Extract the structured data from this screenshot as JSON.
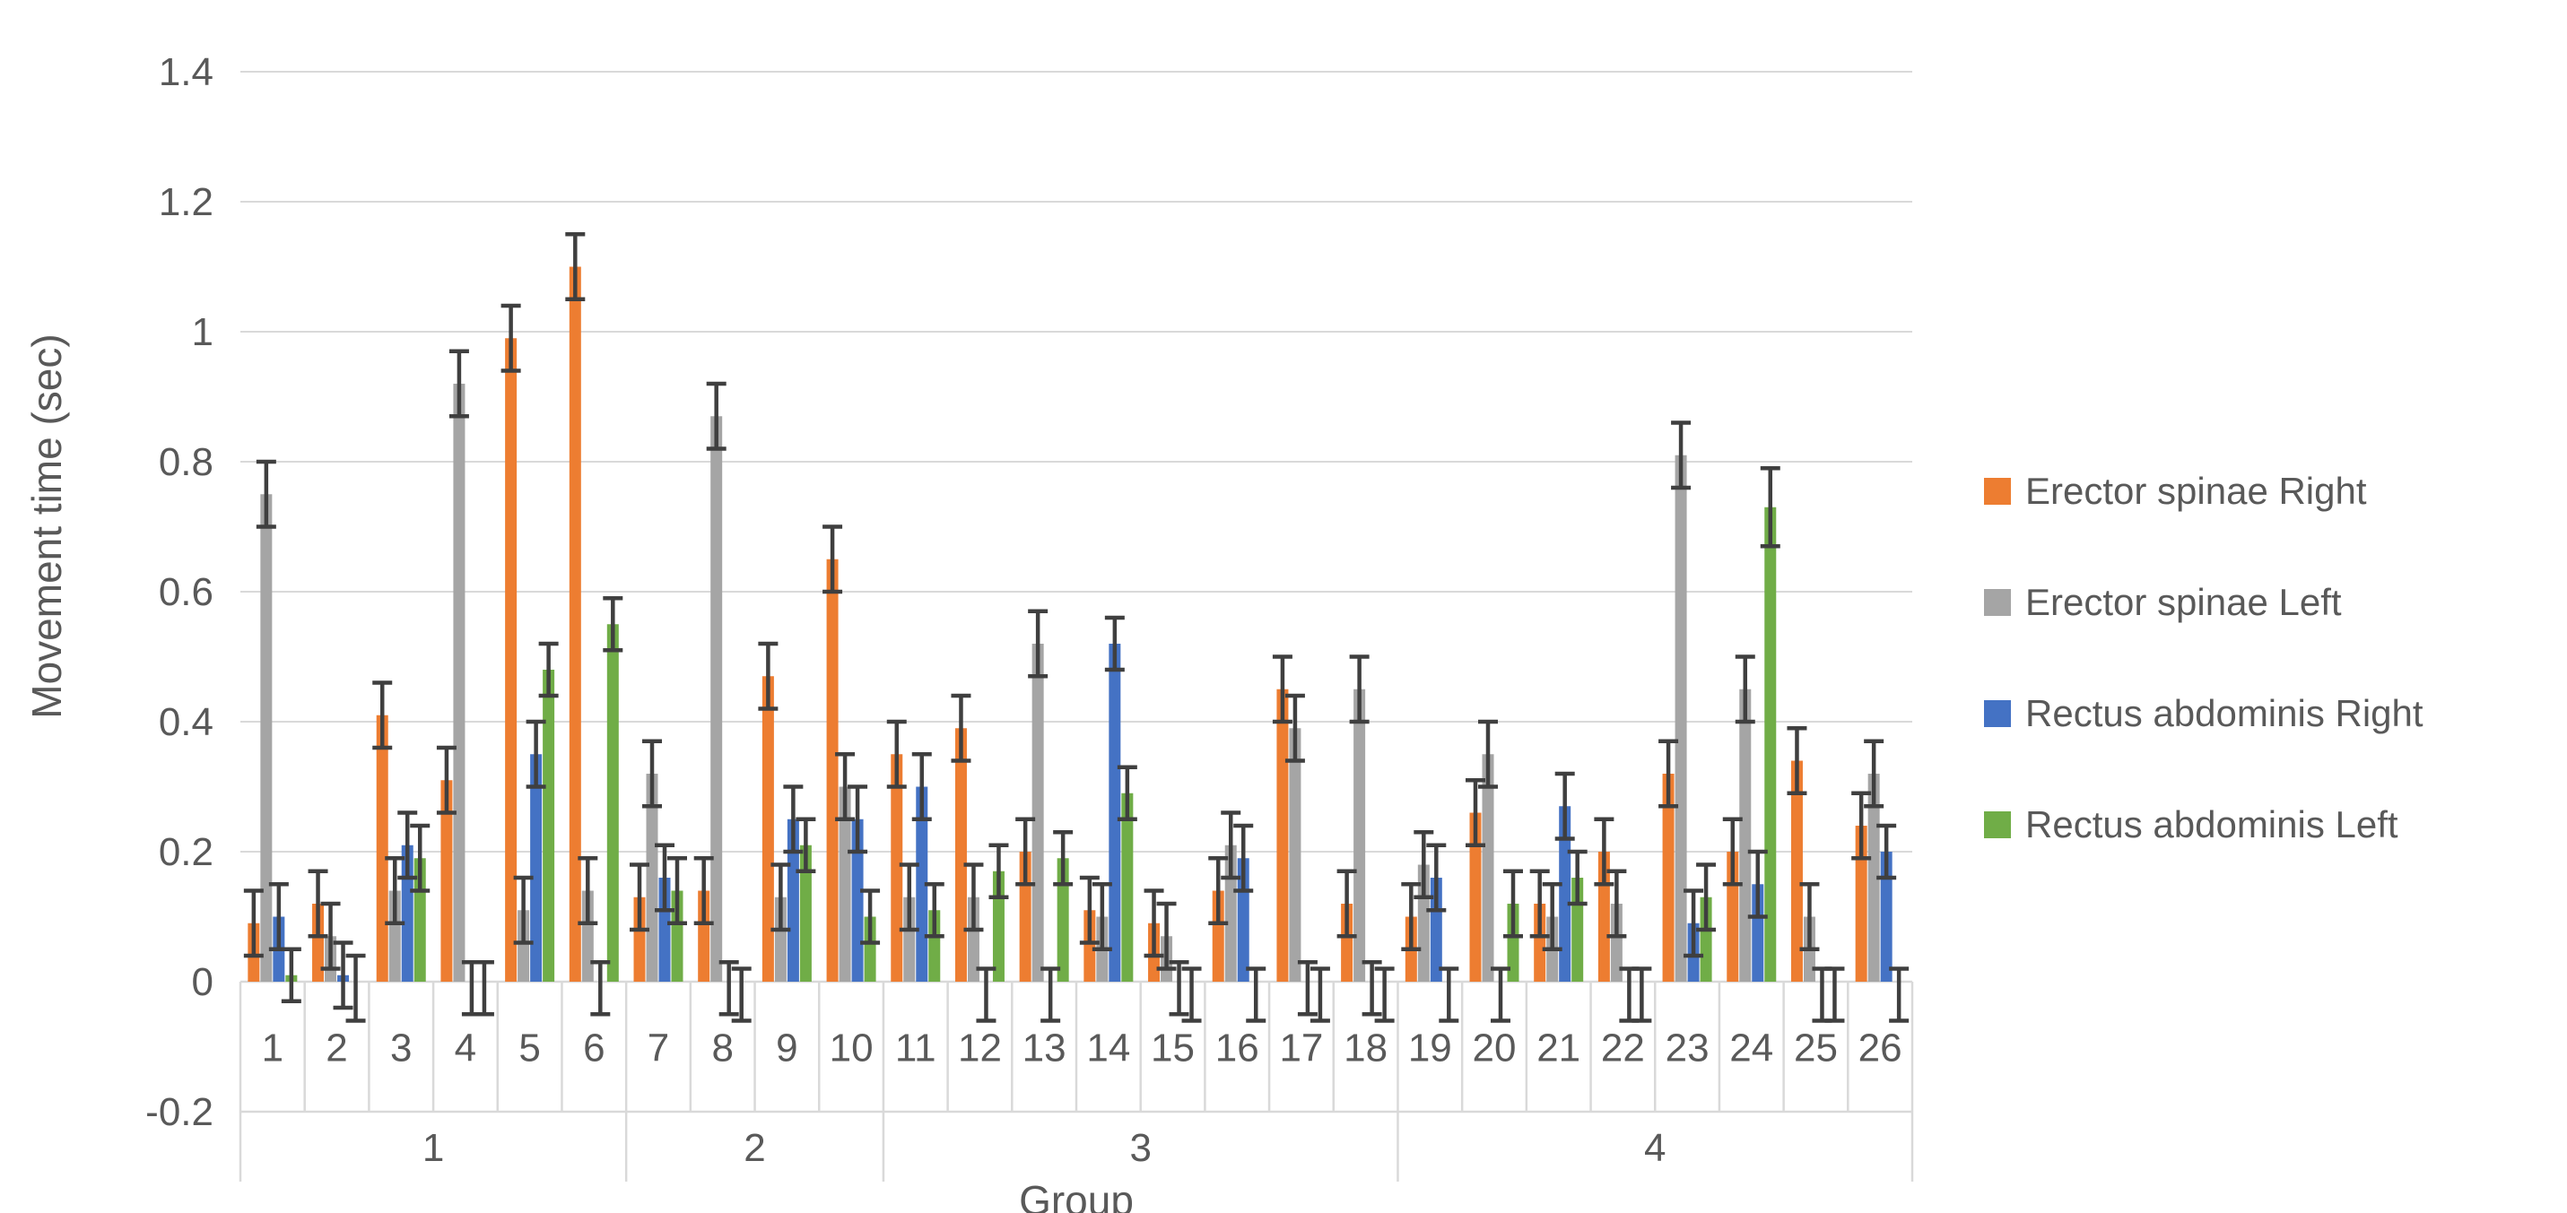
{
  "chart_data": {
    "type": "bar",
    "title": "",
    "ylabel": "Movement time (sec)",
    "xlabel": "Group",
    "ylim": [
      -0.2,
      1.4
    ],
    "grid": true,
    "legend_position": "right",
    "yticks": [
      1.4,
      1.2,
      1.0,
      0.8,
      0.6,
      0.4,
      0.2,
      0.0,
      -0.2
    ],
    "ytick_labels": [
      "1.4",
      "1.2",
      "1",
      "0.8",
      "0.6",
      "0.4",
      "0.2",
      "0",
      "-0.2"
    ],
    "categories": [
      "1",
      "2",
      "3",
      "4",
      "5",
      "6",
      "7",
      "8",
      "9",
      "10",
      "11",
      "12",
      "13",
      "14",
      "15",
      "16",
      "17",
      "18",
      "19",
      "20",
      "21",
      "22",
      "23",
      "24",
      "25",
      "26"
    ],
    "groups": [
      {
        "label": "1",
        "count": 6
      },
      {
        "label": "2",
        "count": 4
      },
      {
        "label": "3",
        "count": 8
      },
      {
        "label": "4",
        "count": 8
      }
    ],
    "error_bar_color": "#3F3F3F",
    "axis_color": "#D9D9D9",
    "text_color": "#595959",
    "series": [
      {
        "name": "Erector spinae Right",
        "color": "#ED7D31",
        "values": [
          0.09,
          0.12,
          0.41,
          0.31,
          0.99,
          1.1,
          0.13,
          0.14,
          0.47,
          0.65,
          0.35,
          0.39,
          0.2,
          0.11,
          0.09,
          0.14,
          0.45,
          0.12,
          0.1,
          0.26,
          0.12,
          0.2,
          0.32,
          0.2,
          0.34,
          0.24
        ],
        "errors": [
          0.05,
          0.05,
          0.05,
          0.05,
          0.05,
          0.05,
          0.05,
          0.05,
          0.05,
          0.05,
          0.05,
          0.05,
          0.05,
          0.05,
          0.05,
          0.05,
          0.05,
          0.05,
          0.05,
          0.05,
          0.05,
          0.05,
          0.05,
          0.05,
          0.05,
          0.05
        ]
      },
      {
        "name": "Erector spinae Left",
        "color": "#A5A5A5",
        "values": [
          0.75,
          0.07,
          0.14,
          0.92,
          0.11,
          0.14,
          0.32,
          0.87,
          0.13,
          0.3,
          0.13,
          0.13,
          0.52,
          0.1,
          0.07,
          0.21,
          0.39,
          0.45,
          0.18,
          0.35,
          0.1,
          0.12,
          0.81,
          0.45,
          0.1,
          0.32
        ],
        "errors": [
          0.05,
          0.05,
          0.05,
          0.05,
          0.05,
          0.05,
          0.05,
          0.05,
          0.05,
          0.05,
          0.05,
          0.05,
          0.05,
          0.05,
          0.05,
          0.05,
          0.05,
          0.05,
          0.05,
          0.05,
          0.05,
          0.05,
          0.05,
          0.05,
          0.05,
          0.05
        ]
      },
      {
        "name": "Rectus abdominis Right",
        "color": "#4472C4",
        "values": [
          0.1,
          0.01,
          0.21,
          -0.01,
          0.35,
          -0.01,
          0.16,
          -0.01,
          0.25,
          0.25,
          0.3,
          -0.02,
          -0.02,
          0.52,
          -0.01,
          0.19,
          -0.01,
          -0.01,
          0.16,
          -0.02,
          0.27,
          -0.02,
          0.09,
          0.15,
          -0.02,
          0.2
        ],
        "errors": [
          0.05,
          0.05,
          0.05,
          0.04,
          0.05,
          0.04,
          0.05,
          0.04,
          0.05,
          0.05,
          0.05,
          0.04,
          0.04,
          0.04,
          0.04,
          0.05,
          0.04,
          0.04,
          0.05,
          0.04,
          0.05,
          0.04,
          0.05,
          0.05,
          0.04,
          0.04
        ]
      },
      {
        "name": "Rectus abdominis Left",
        "color": "#70AD47",
        "values": [
          0.01,
          -0.01,
          0.19,
          -0.01,
          0.48,
          0.55,
          0.14,
          -0.02,
          0.21,
          0.1,
          0.11,
          0.17,
          0.19,
          0.29,
          -0.02,
          -0.02,
          -0.02,
          -0.02,
          -0.02,
          0.12,
          0.16,
          -0.02,
          0.13,
          0.73,
          -0.02,
          -0.02
        ],
        "errors": [
          0.04,
          0.05,
          0.05,
          0.04,
          0.04,
          0.04,
          0.05,
          0.04,
          0.04,
          0.04,
          0.04,
          0.04,
          0.04,
          0.04,
          0.04,
          0.04,
          0.04,
          0.04,
          0.04,
          0.05,
          0.04,
          0.04,
          0.05,
          0.06,
          0.04,
          0.04
        ]
      }
    ]
  }
}
